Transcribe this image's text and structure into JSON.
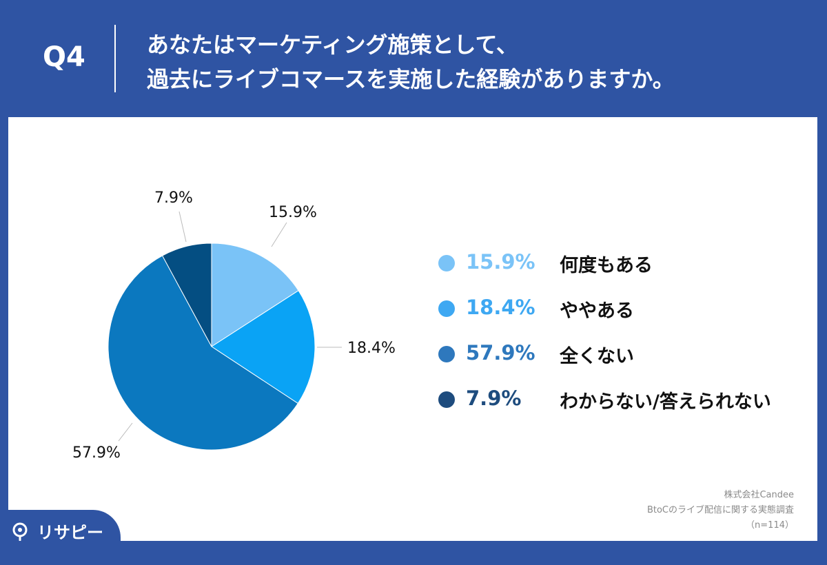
{
  "header": {
    "question": "Q4",
    "title_lines": [
      "あなたはマーケティング施策として、",
      "過去にライブコマースを実施した経験がありますか。"
    ]
  },
  "chart_data": {
    "type": "pie",
    "slices": [
      {
        "label": "何度もある",
        "value": 15.9,
        "display": "15.9%",
        "color": "#7ac3f7"
      },
      {
        "label": "ややある",
        "value": 18.4,
        "display": "18.4%",
        "color": "#0aa3f5"
      },
      {
        "label": "全くない",
        "value": 57.9,
        "display": "57.9%",
        "color": "#0b78bf"
      },
      {
        "label": "わからない/答えられない",
        "value": 7.9,
        "display": "7.9%",
        "color": "#044e82"
      }
    ],
    "start_angle_deg": 0,
    "direction": "clockwise",
    "legend_position": "right"
  },
  "legend_value_colors": [
    "#7ac3f7",
    "#3ea8f2",
    "#2e78bd",
    "#1e4c7e"
  ],
  "source": {
    "company": "株式会社Candee",
    "survey": "BtoCのライブ配信に関する実態調査",
    "sample": "（n=114）"
  },
  "brand": {
    "name": "リサピー"
  }
}
